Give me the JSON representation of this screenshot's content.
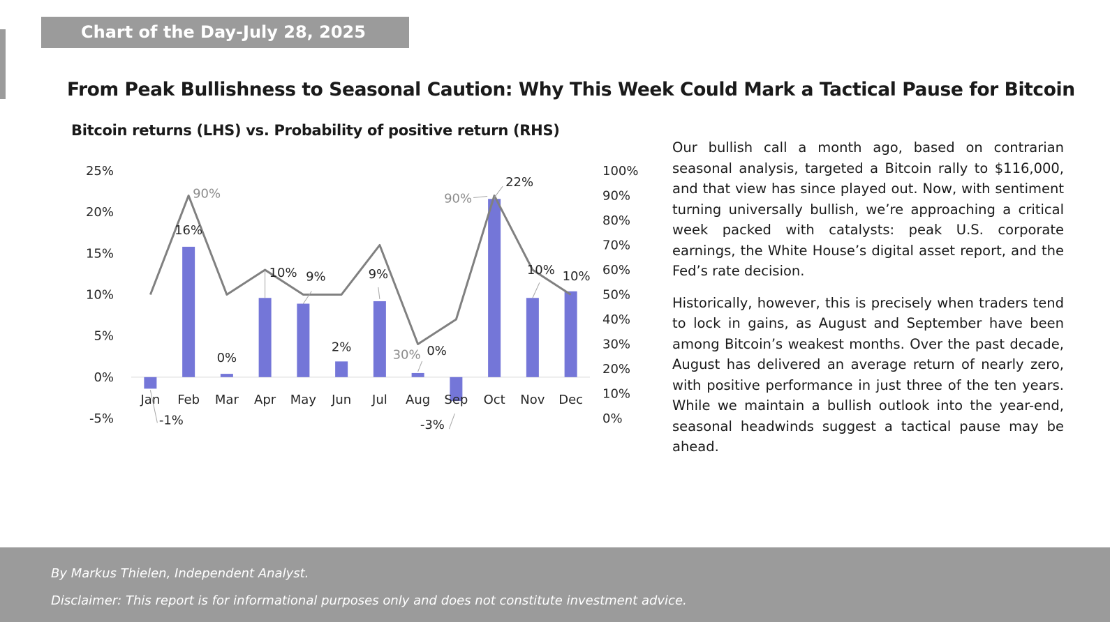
{
  "banner": {
    "text": "Chart of the Day-July 28, 2025"
  },
  "headline": "From Peak Bullishness to Seasonal Caution: Why This Week Could Mark a Tactical Pause for Bitcoin",
  "chart_data": {
    "type": "bar",
    "title": "Bitcoin returns (LHS) vs. Probability of positive return (RHS)",
    "categories": [
      "Jan",
      "Feb",
      "Mar",
      "Apr",
      "May",
      "Jun",
      "Jul",
      "Aug",
      "Sep",
      "Oct",
      "Nov",
      "Dec"
    ],
    "series": [
      {
        "name": "Bitcoin returns",
        "kind": "bar",
        "axis": "left",
        "color": "#7476d8",
        "values": [
          -1.4,
          15.8,
          0.4,
          9.6,
          8.9,
          1.9,
          9.2,
          0.5,
          -2.9,
          21.6,
          9.6,
          10.4
        ],
        "labels": [
          "-1%",
          "16%",
          "0%",
          "10%",
          "9%",
          "2%",
          "9%",
          "0%",
          "-3%",
          "22%",
          "10%",
          "10%"
        ]
      },
      {
        "name": "Probability of positive return",
        "kind": "line",
        "axis": "right",
        "color": "#808080",
        "values": [
          50,
          90,
          50,
          60,
          50,
          50,
          70,
          30,
          40,
          90,
          60,
          50
        ],
        "labeled_points": [
          {
            "index": 1,
            "label": "90%"
          },
          {
            "index": 7,
            "label": "30%"
          },
          {
            "index": 9,
            "label": "90%"
          }
        ]
      }
    ],
    "left_axis": {
      "min": -5,
      "max": 25,
      "ticks": [
        -5,
        0,
        5,
        10,
        15,
        20,
        25
      ],
      "tick_labels": [
        "-5%",
        "0%",
        "5%",
        "10%",
        "15%",
        "20%",
        "25%"
      ]
    },
    "right_axis": {
      "min": 0,
      "max": 100,
      "ticks": [
        0,
        10,
        20,
        30,
        40,
        50,
        60,
        70,
        80,
        90,
        100
      ],
      "tick_labels": [
        "0%",
        "10%",
        "20%",
        "30%",
        "40%",
        "50%",
        "60%",
        "70%",
        "80%",
        "90%",
        "100%"
      ]
    },
    "grid": false,
    "legend": "none"
  },
  "commentary": [
    "Our bullish call a month ago, based on contrarian seasonal analysis, targeted a Bitcoin rally to $116,000, and that view has since played out. Now, with sentiment turning universally bullish, we’re approaching a critical week packed with catalysts: peak U.S. corporate earnings, the White House’s digital asset report, and the Fed’s rate decision.",
    "Historically, however, this is precisely when traders tend to lock in gains, as August and September have been among Bitcoin’s weakest months. Over the past decade, August has delivered an average return of nearly zero, with positive performance in just three of the ten years. While we maintain a bullish outlook into the year-end, seasonal headwinds suggest a tactical pause may be ahead."
  ],
  "footer": {
    "author": "By Markus Thielen, Independent Analyst.",
    "disclaimer": "Disclaimer: This report is for informational purposes only and does not constitute investment advice."
  }
}
